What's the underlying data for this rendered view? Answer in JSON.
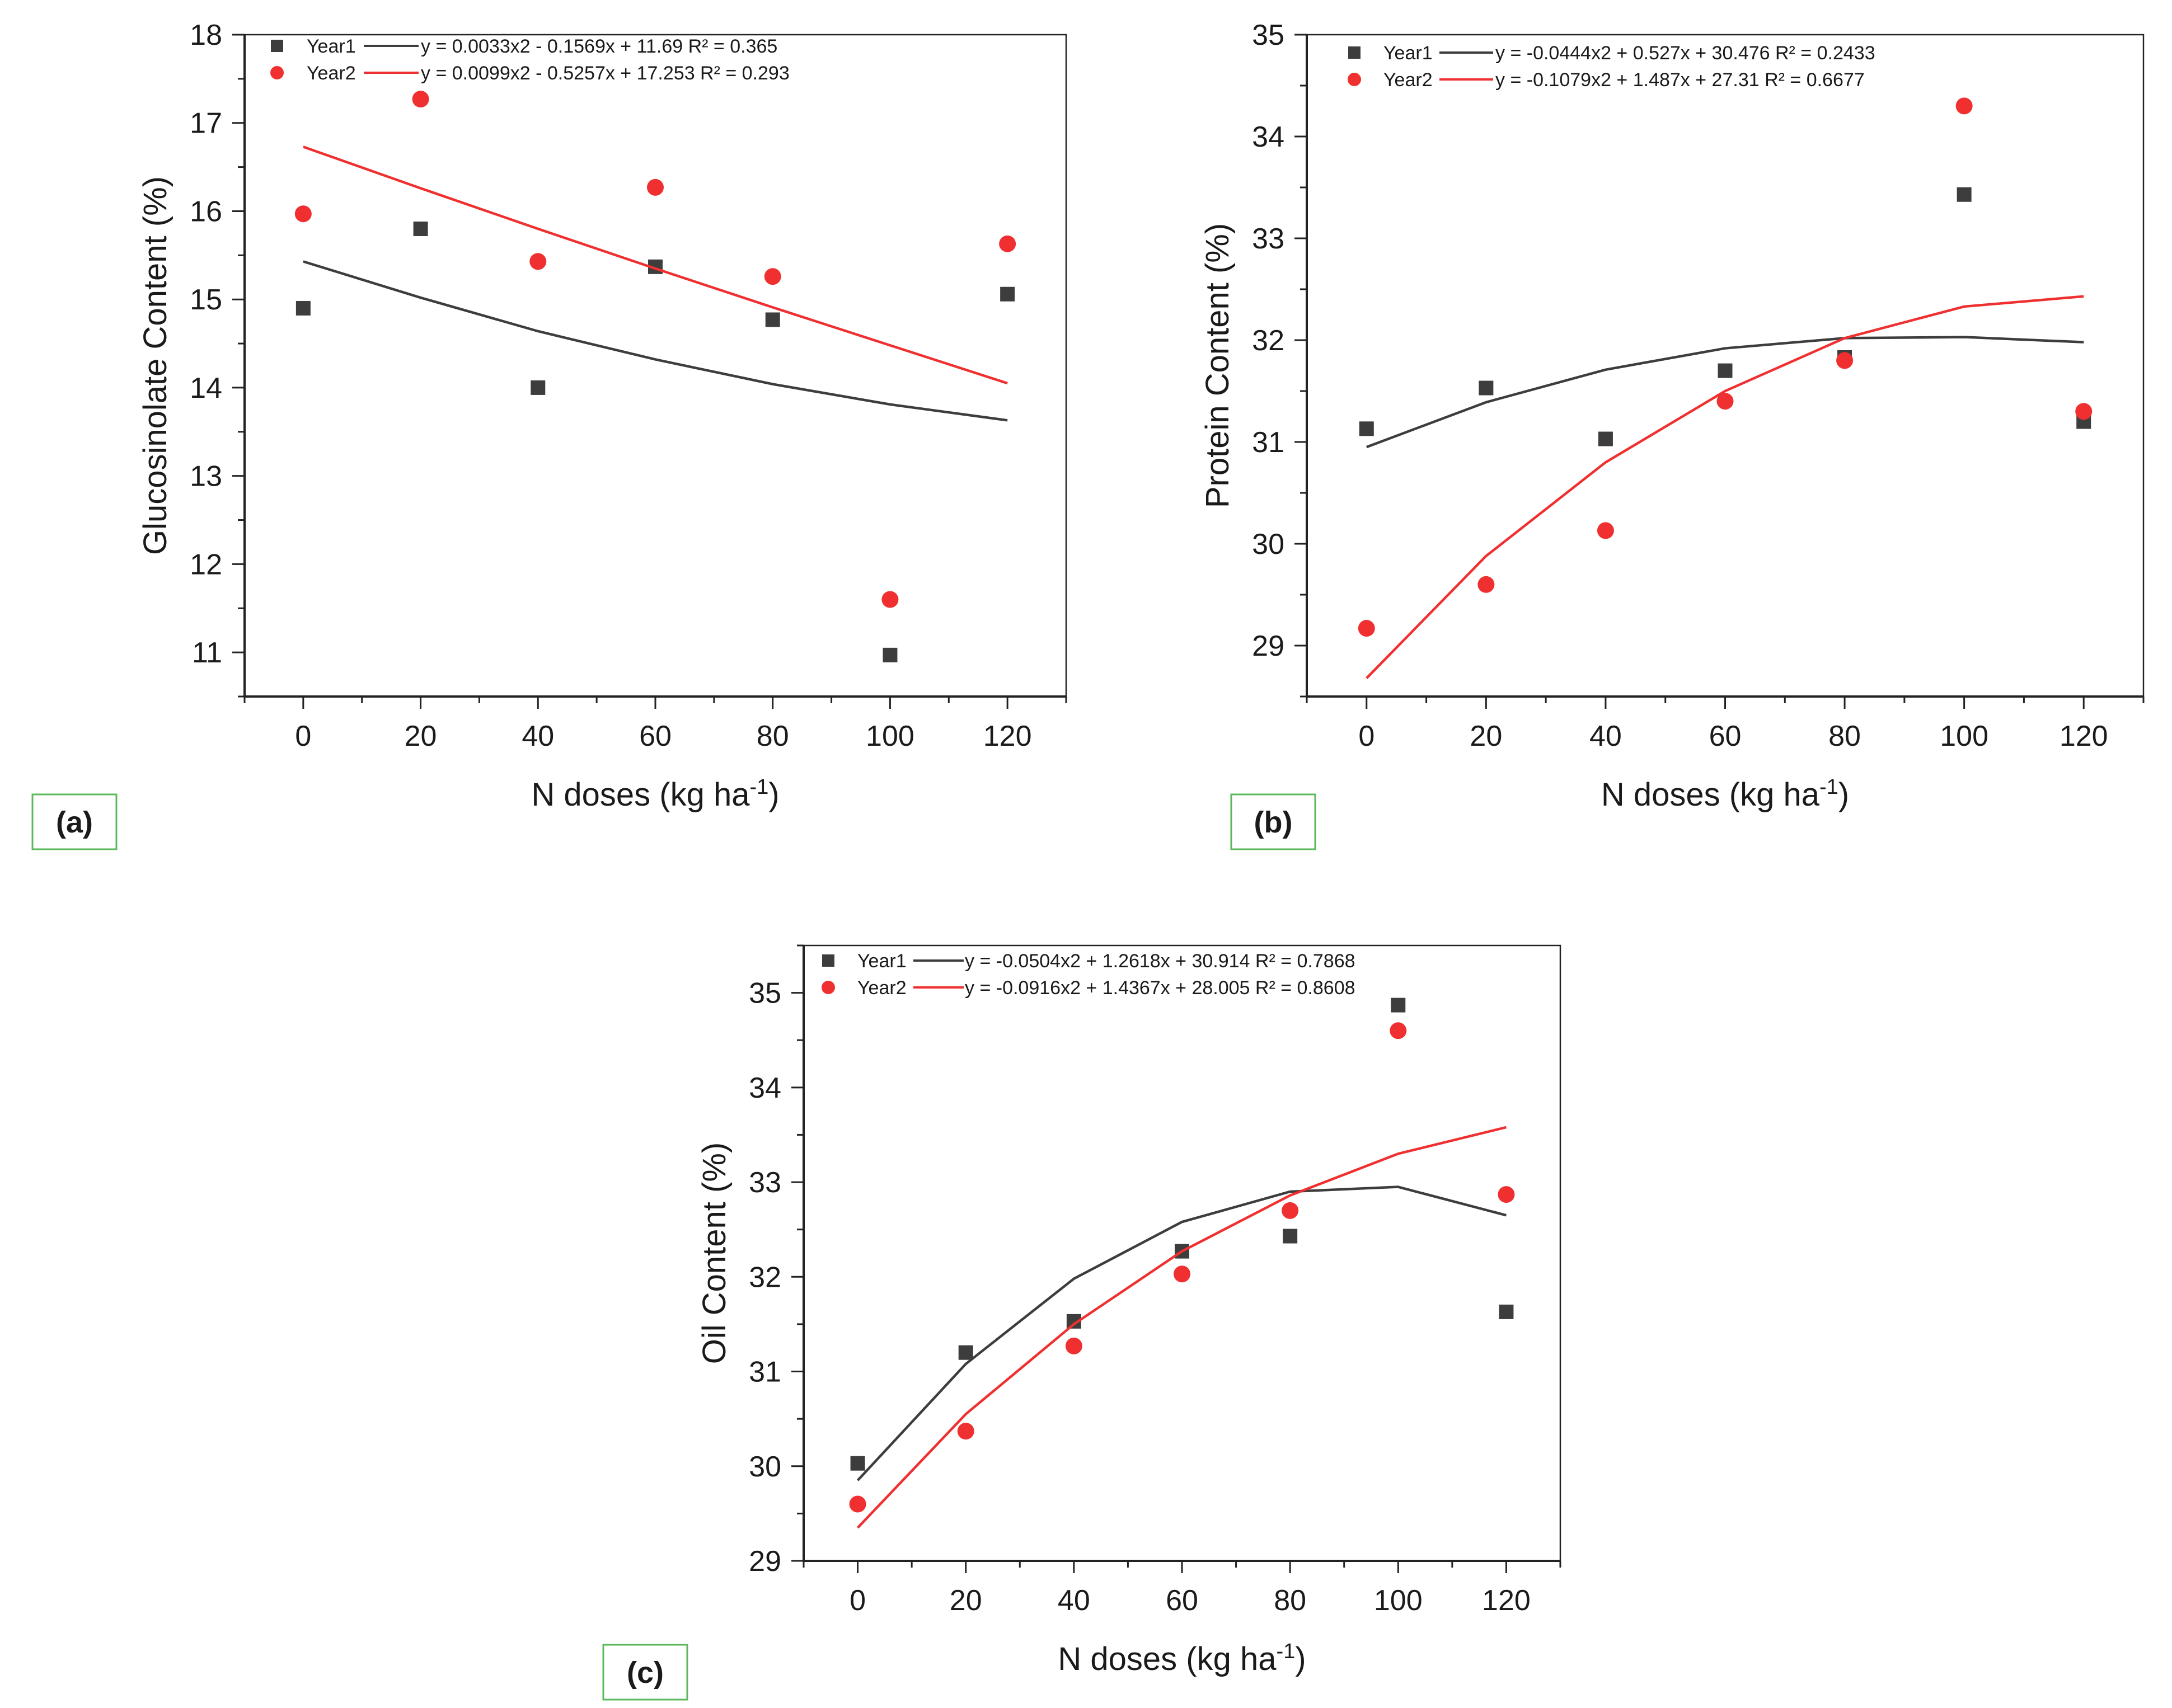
{
  "chart_data": [
    {
      "type": "scatter",
      "panel": "(a)",
      "xlabel": "N doses (kg ha",
      "xlabel_sup": "-1",
      "xlabel_end": ")",
      "ylabel": "Glucosinolate Content (%)",
      "xlim": [
        -10,
        130
      ],
      "ylim": [
        10.5,
        18
      ],
      "xticks": [
        "0",
        "20",
        "40",
        "60",
        "80",
        "100",
        "120"
      ],
      "yticks": [
        "11",
        "12",
        "13",
        "14",
        "15",
        "16",
        "17",
        "18"
      ],
      "series": [
        {
          "name": "Year1",
          "color": "#3d3d3d",
          "marker": "square",
          "equation": "y = 0.0033x2 - 0.1569x + 11.69  R² = 0.365",
          "x": [
            0,
            20,
            40,
            60,
            80,
            100,
            120
          ],
          "values": [
            14.9,
            15.8,
            14.0,
            15.37,
            14.77,
            10.97,
            15.06
          ],
          "fit_values": [
            15.43,
            15.02,
            14.64,
            14.32,
            14.04,
            13.81,
            13.63
          ]
        },
        {
          "name": "Year2",
          "color": "#f03030",
          "marker": "circle",
          "equation": "y = 0.0099x2 - 0.5257x + 17.253 R² = 0.293",
          "x": [
            0,
            20,
            40,
            60,
            80,
            100,
            120
          ],
          "values": [
            15.97,
            17.27,
            15.43,
            16.27,
            15.26,
            11.6,
            15.63
          ],
          "fit_values": [
            16.73,
            16.26,
            15.8,
            15.35,
            14.91,
            14.48,
            14.05
          ]
        }
      ]
    },
    {
      "type": "scatter",
      "panel": "(b)",
      "xlabel": "N doses (kg ha",
      "xlabel_sup": "-1",
      "xlabel_end": ")",
      "ylabel": "Protein Content (%)",
      "xlim": [
        -10,
        130
      ],
      "ylim": [
        28.5,
        35
      ],
      "xticks": [
        "0",
        "20",
        "40",
        "60",
        "80",
        "100",
        "120"
      ],
      "yticks": [
        "29",
        "30",
        "31",
        "32",
        "33",
        "34",
        "35"
      ],
      "series": [
        {
          "name": "Year1",
          "color": "#3d3d3d",
          "marker": "square",
          "equation": "y = -0.0444x2 + 0.527x + 30.476 R² = 0.2433",
          "x": [
            0,
            20,
            40,
            60,
            80,
            100,
            120
          ],
          "values": [
            31.13,
            31.53,
            31.03,
            31.7,
            31.83,
            33.43,
            31.2
          ],
          "fit_values": [
            30.95,
            31.39,
            31.71,
            31.92,
            32.02,
            32.03,
            31.98
          ]
        },
        {
          "name": "Year2",
          "color": "#f03030",
          "marker": "circle",
          "equation": "y = -0.1079x2 + 1.487x + 27.31  R² = 0.6677",
          "x": [
            0,
            20,
            40,
            60,
            80,
            100,
            120
          ],
          "values": [
            29.17,
            29.6,
            30.13,
            31.4,
            31.8,
            34.3,
            31.3
          ],
          "fit_values": [
            28.68,
            29.88,
            30.8,
            31.5,
            32.02,
            32.33,
            32.43
          ]
        }
      ]
    },
    {
      "type": "scatter",
      "panel": "(c)",
      "xlabel": "N doses (kg ha",
      "xlabel_sup": "-1",
      "xlabel_end": ")",
      "ylabel": "Oil Content (%)",
      "xlim": [
        -10,
        130
      ],
      "ylim": [
        29,
        35.5
      ],
      "xticks": [
        "0",
        "20",
        "40",
        "60",
        "80",
        "100",
        "120"
      ],
      "yticks": [
        "29",
        "30",
        "31",
        "32",
        "33",
        "34",
        "35"
      ],
      "series": [
        {
          "name": "Year1",
          "color": "#3d3d3d",
          "marker": "square",
          "equation": "y = -0.0504x2 + 1.2618x + 30.914 R² = 0.7868",
          "x": [
            0,
            20,
            40,
            60,
            80,
            100,
            120
          ],
          "values": [
            30.03,
            31.2,
            31.53,
            32.27,
            32.43,
            34.87,
            31.63
          ],
          "fit_values": [
            29.85,
            31.08,
            31.98,
            32.58,
            32.9,
            32.95,
            32.65
          ]
        },
        {
          "name": "Year2",
          "color": "#f03030",
          "marker": "circle",
          "equation": "y = -0.0916x2 + 1.4367x + 28.005 R² = 0.8608",
          "x": [
            0,
            20,
            40,
            60,
            80,
            100,
            120
          ],
          "values": [
            29.6,
            30.37,
            31.27,
            32.03,
            32.7,
            34.6,
            32.87
          ],
          "fit_values": [
            29.35,
            30.55,
            31.5,
            32.27,
            32.86,
            33.3,
            33.58
          ]
        }
      ]
    }
  ]
}
